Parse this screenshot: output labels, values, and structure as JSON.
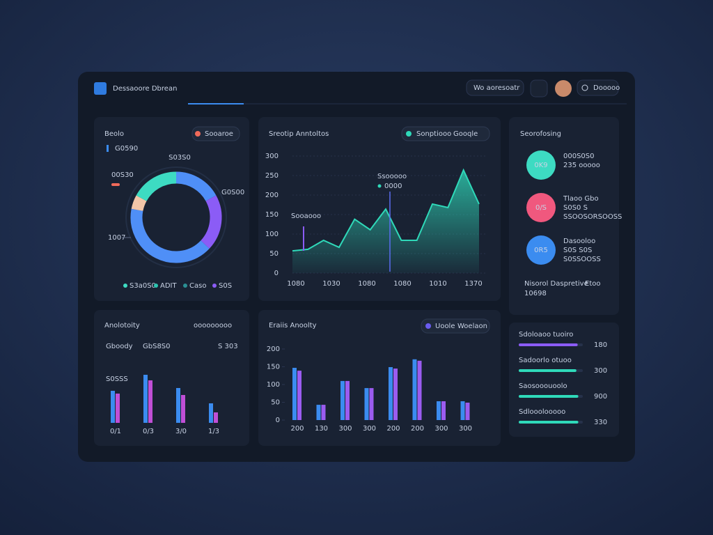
{
  "header": {
    "title": "Dessaoore Dbrean",
    "search": "Wo aoresoatr",
    "button": "Dooooo"
  },
  "beolo": {
    "title": "Beolo",
    "tag": "Sooaroe",
    "stat": "G0590",
    "callouts": [
      "S03S0",
      "00S30",
      "G0S00",
      "1007"
    ],
    "chart": {
      "type": "pie",
      "values": [
        17,
        20,
        41,
        5,
        17
      ],
      "colors": [
        "#4f8ff7",
        "#8b5cf6",
        "#4f8ff7",
        "#f2c6a8",
        "#3ddbc2"
      ]
    },
    "legend": [
      {
        "name": "S3a0S0",
        "color": "#3ddbc2"
      },
      {
        "name": "ADIT",
        "color": "#2bc4b0"
      },
      {
        "name": "Caso",
        "color": "#2a8f93"
      },
      {
        "name": "S0S",
        "color": "#8b5cf6"
      }
    ]
  },
  "traffic": {
    "title": "Sreotip Anntoltos",
    "legend": [
      "Sonptiooo",
      "Gooqle"
    ],
    "annotations": [
      "Sooaooo",
      "Ssooooo",
      "0000"
    ],
    "chart": {
      "type": "area",
      "color": "#2fd9b9",
      "values": [
        57,
        61,
        84,
        66,
        138,
        111,
        164,
        84,
        84,
        177,
        168,
        264,
        177
      ],
      "xlabels": [
        "1080",
        "1030",
        "1080",
        "1080",
        "1010",
        "1370"
      ],
      "ylim": [
        0,
        300
      ],
      "yticks": [
        0,
        50,
        100,
        150,
        200,
        250,
        300
      ],
      "grid": true
    }
  },
  "activity": {
    "title": "Anolotoity",
    "subtitle": "ooooooooo",
    "label": "Gboody",
    "highlight": "GbS8S0",
    "delta": "S 303",
    "note": "S0SSS",
    "chart": {
      "type": "bar",
      "categories": [
        "0/1",
        "0/3",
        "3/0",
        "1/3"
      ],
      "ylim": [
        0,
        80
      ],
      "series": [
        {
          "color": "#3b8cf0",
          "values": [
            46,
            69,
            50,
            28
          ]
        },
        {
          "color": "#c04fd6",
          "values": [
            42,
            61,
            40,
            15
          ]
        }
      ]
    }
  },
  "sales": {
    "title": "Eraiis Anoolty",
    "legend": [
      "Uoole",
      "Woelaon"
    ],
    "chart": {
      "type": "bar",
      "categories": [
        "200",
        "130",
        "300",
        "300",
        "200",
        "200",
        "300",
        "300"
      ],
      "ylim": [
        0,
        200
      ],
      "yticks": [
        0,
        50,
        100,
        150,
        200
      ],
      "series": [
        {
          "color": "#3b8cf0",
          "values": [
            147,
            43,
            110,
            90,
            149,
            171,
            53,
            53
          ]
        },
        {
          "color": "#9b5cf0",
          "values": [
            139,
            43,
            110,
            90,
            145,
            167,
            53,
            49
          ]
        }
      ]
    }
  },
  "scores": {
    "title": "Seorofosing",
    "items": [
      {
        "badge": "0K9",
        "color": "#3ddbc2",
        "lines": [
          "000S0S0",
          "235 ooooo"
        ]
      },
      {
        "badge": "0/S",
        "color": "#f0587e",
        "lines": [
          "Tlaoo Gbo",
          "S0S0 S",
          "SSOOSORSOOSS"
        ]
      },
      {
        "badge": "0R5",
        "color": "#3b8cf0",
        "lines": [
          "Dasooloo",
          "S0S S0S",
          "S0SSOOSS"
        ]
      }
    ],
    "footer": {
      "label": "Nisorol Daspretive",
      "tag": "Etoo",
      "value": "10698"
    }
  },
  "progress": {
    "items": [
      {
        "label": "Sdoloaoo tuoiro",
        "value_label": "180",
        "percent": 92,
        "color": "#8b5cf6"
      },
      {
        "label": "Sadoorlo otuoo",
        "value_label": "300",
        "percent": 90,
        "color": "#2fd9b9"
      },
      {
        "label": "Saosooouoolo",
        "value_label": "900",
        "percent": 93,
        "color": "#2fd9b9"
      },
      {
        "label": "Sdlooolooooo",
        "value_label": "330",
        "percent": 93,
        "color": "#2fd9b9"
      }
    ]
  }
}
